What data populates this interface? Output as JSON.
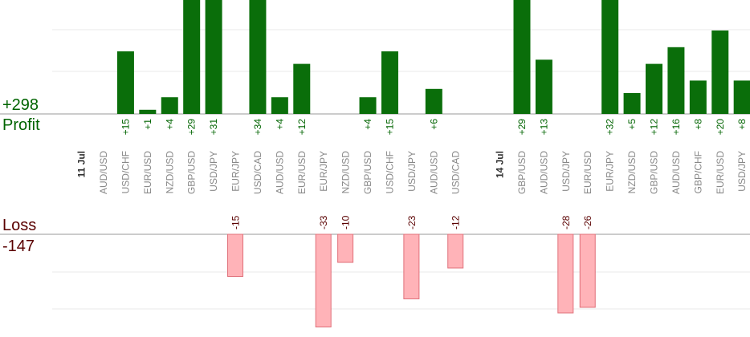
{
  "summary": {
    "profit_total": "+298",
    "profit_label": "Profit",
    "loss_label": "Loss",
    "loss_total": "-147"
  },
  "colors": {
    "profit_bar": "#0a6e0a",
    "profit_text": "#006400",
    "loss_bar": "#ffb3b8",
    "loss_border": "#e0707a",
    "loss_text": "#5a0000",
    "grid": "#e8e8e8",
    "tick_label": "#888888"
  },
  "chart_data": {
    "type": "bar",
    "grid": true,
    "categories": [
      {
        "date": "11 Jul",
        "pair": "AUD/USD",
        "value": null
      },
      {
        "date": "",
        "pair": "USD/CHF",
        "value": 15
      },
      {
        "date": "",
        "pair": "EUR/USD",
        "value": 1
      },
      {
        "date": "",
        "pair": "NZD/USD",
        "value": 4
      },
      {
        "date": "",
        "pair": "GBP/USD",
        "value": 29
      },
      {
        "date": "",
        "pair": "USD/JPY",
        "value": 31
      },
      {
        "date": "",
        "pair": "EUR/JPY",
        "value": -15
      },
      {
        "date": "",
        "pair": "USD/CAD",
        "value": 34
      },
      {
        "date": "",
        "pair": "AUD/USD",
        "value": 4
      },
      {
        "date": "",
        "pair": "EUR/USD",
        "value": 12
      },
      {
        "date": "",
        "pair": "EUR/JPY",
        "value": -33
      },
      {
        "date": "",
        "pair": "NZD/USD",
        "value": -10
      },
      {
        "date": "",
        "pair": "GBP/USD",
        "value": 4
      },
      {
        "date": "",
        "pair": "USD/CHF",
        "value": 15
      },
      {
        "date": "",
        "pair": "USD/JPY",
        "value": -23
      },
      {
        "date": "",
        "pair": "AUD/USD",
        "value": 6
      },
      {
        "date": "",
        "pair": "USD/CAD",
        "value": -12
      },
      {
        "date": "",
        "pair": "",
        "value": null
      },
      {
        "date": "",
        "pair": "",
        "value": null
      },
      {
        "date": "14 Jul",
        "pair": "GBP/USD",
        "value": 29
      },
      {
        "date": "",
        "pair": "AUD/USD",
        "value": 13
      },
      {
        "date": "",
        "pair": "USD/JPY",
        "value": -28
      },
      {
        "date": "",
        "pair": "EUR/USD",
        "value": -26
      },
      {
        "date": "",
        "pair": "EUR/JPY",
        "value": 32
      },
      {
        "date": "",
        "pair": "NZD/USD",
        "value": 5
      },
      {
        "date": "",
        "pair": "GBP/USD",
        "value": 12
      },
      {
        "date": "",
        "pair": "AUD/USD",
        "value": 16
      },
      {
        "date": "",
        "pair": "GBP/CHF",
        "value": 8
      },
      {
        "date": "",
        "pair": "EUR/USD",
        "value": 20
      },
      {
        "date": "",
        "pair": "USD/JPY",
        "value": 8
      }
    ]
  }
}
